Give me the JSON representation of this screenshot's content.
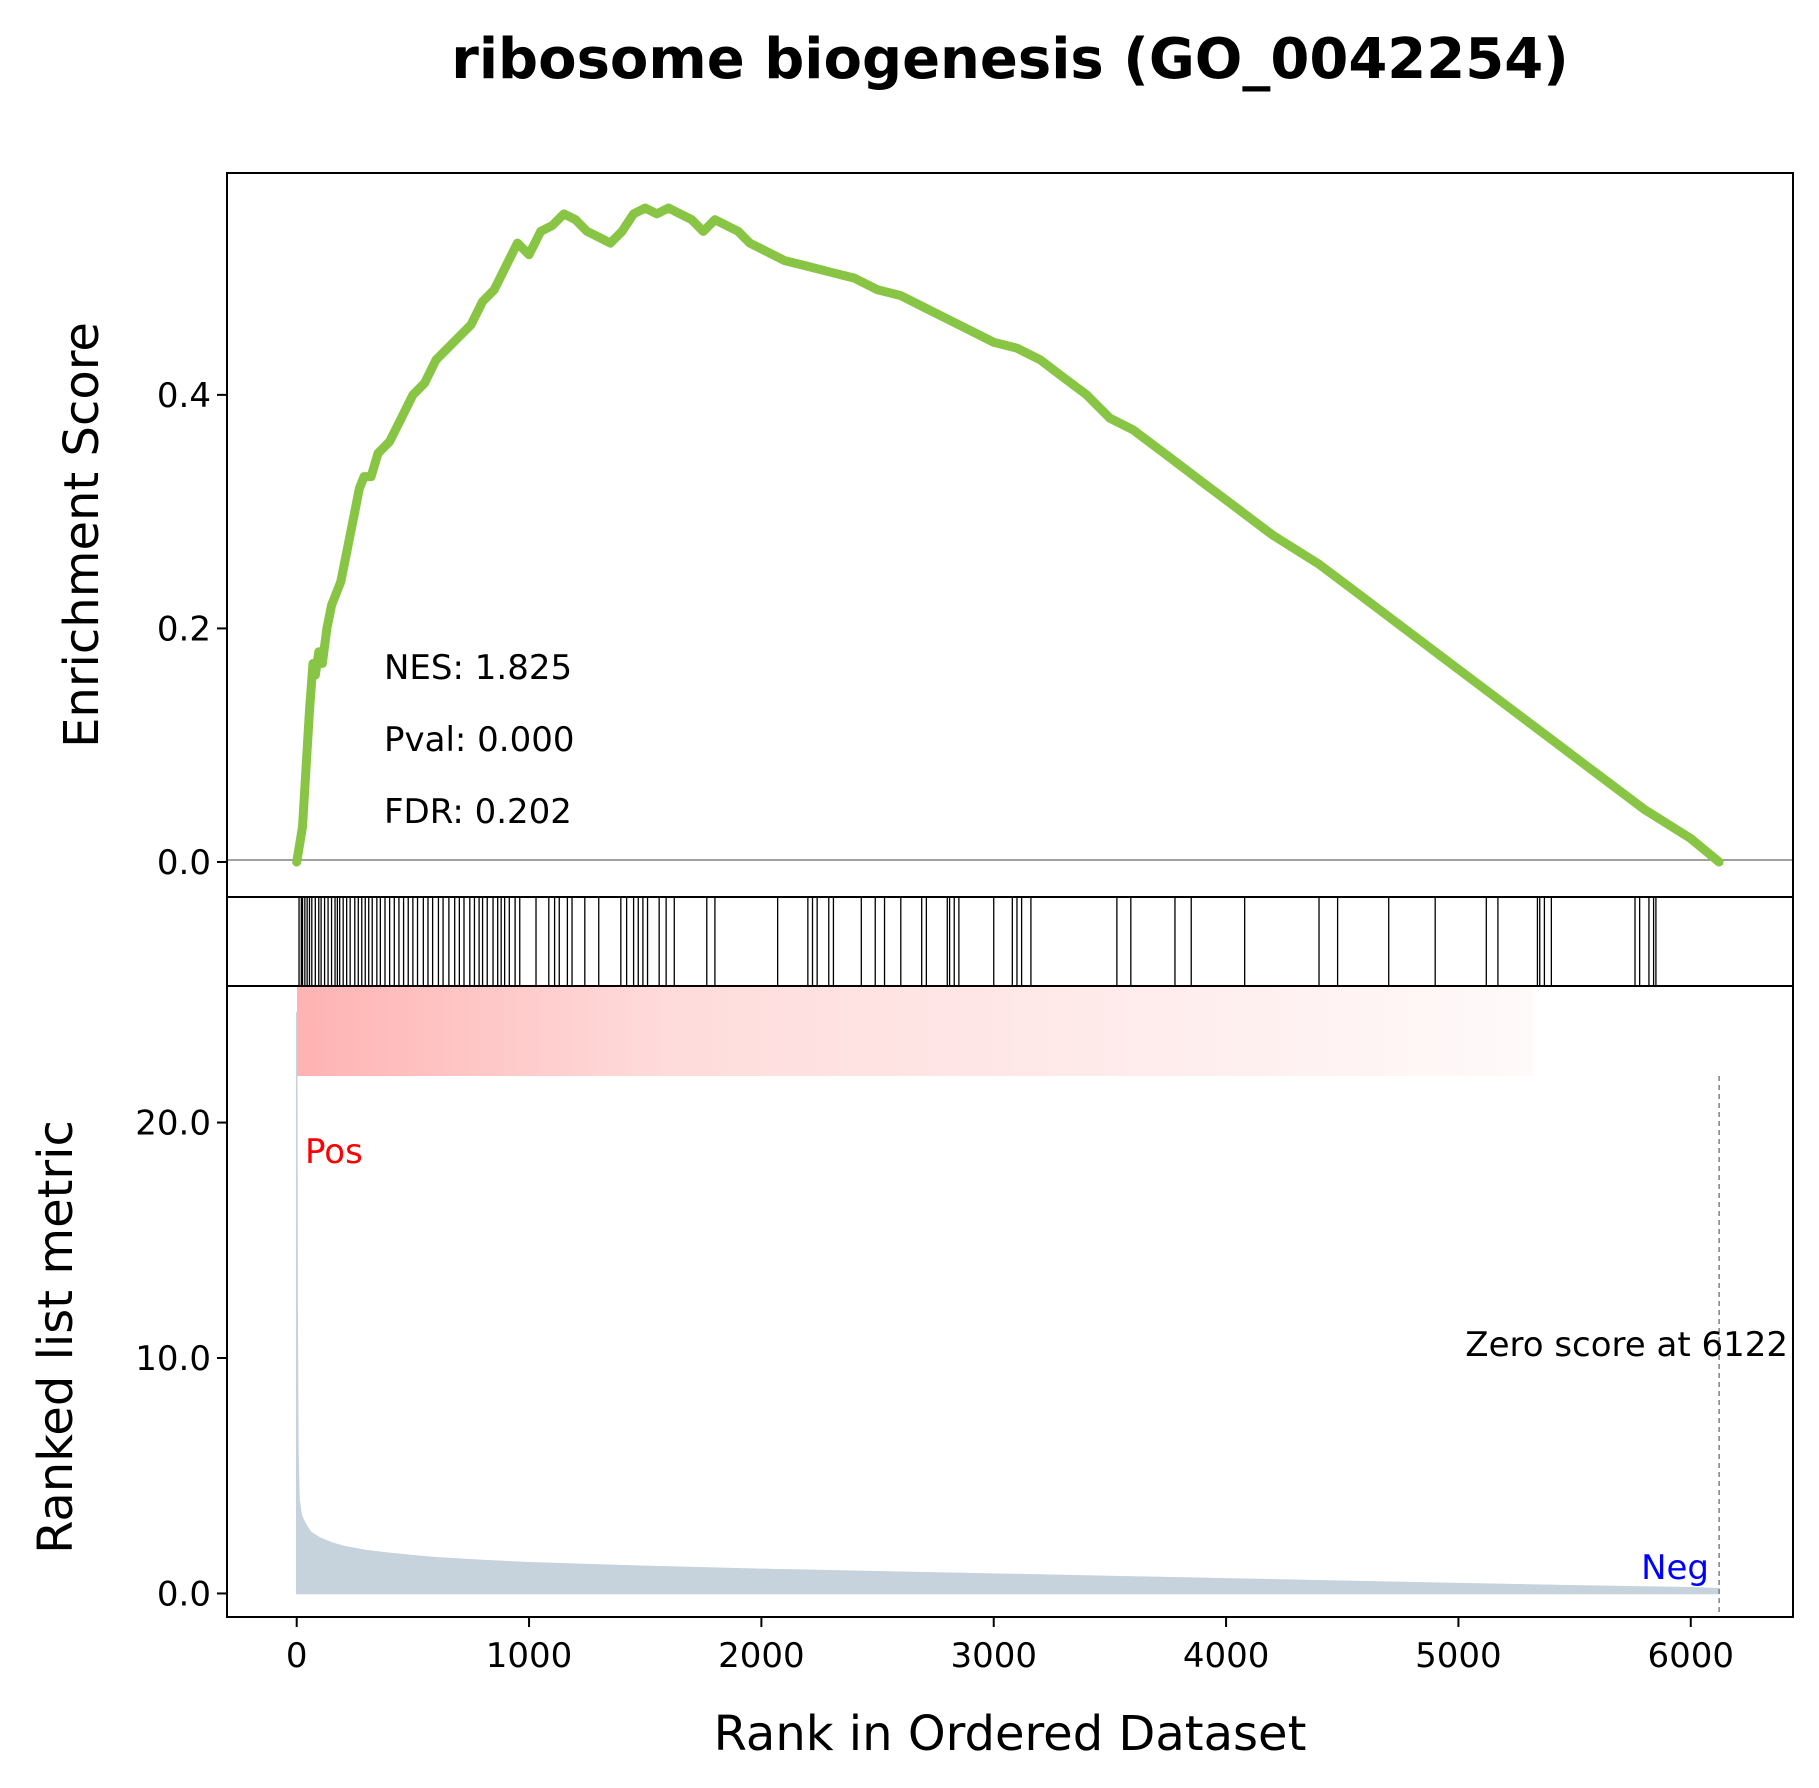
{
  "chart_data": {
    "type": "line",
    "title": "ribosome biogenesis (GO_0042254)",
    "xlabel": "Rank in Ordered Dataset",
    "xlim": [
      -300,
      6440
    ],
    "x_ticks": [
      0,
      1000,
      2000,
      3000,
      4000,
      5000,
      6000
    ],
    "x_tick_labels": [
      "0",
      "1000",
      "2000",
      "3000",
      "4000",
      "5000",
      "6000"
    ],
    "colors": {
      "es_line": "#88c544",
      "metric_fill": "#c6d2dc",
      "pos": "#ff0000",
      "neg": "#0000ff",
      "gradient": "#ff9999"
    },
    "panels": {
      "enrichment": {
        "ylabel": "Enrichment Score",
        "ylim": [
          -0.03,
          0.59
        ],
        "y_ticks": [
          0.0,
          0.2,
          0.4
        ],
        "y_tick_labels": [
          "0.0",
          "0.2",
          "0.4"
        ],
        "series": [
          {
            "x": [
              0,
              25,
              40,
              55,
              70,
              80,
              95,
              110,
              130,
              150,
              170,
              190,
              220,
              250,
              270,
              290,
              320,
              350,
              400,
              450,
              500,
              550,
              600,
              650,
              700,
              750,
              800,
              850,
              900,
              950,
              1000,
              1050,
              1100,
              1150,
              1200,
              1250,
              1300,
              1350,
              1400,
              1450,
              1500,
              1550,
              1600,
              1650,
              1700,
              1750,
              1800,
              1850,
              1900,
              1950,
              2000,
              2100,
              2200,
              2300,
              2400,
              2500,
              2600,
              2700,
              2800,
              2900,
              3000,
              3100,
              3200,
              3300,
              3400,
              3500,
              3600,
              3700,
              3800,
              3900,
              4000,
              4200,
              4400,
              4600,
              4800,
              5000,
              5200,
              5400,
              5600,
              5800,
              6000,
              6122
            ],
            "values": [
              0.0,
              0.03,
              0.08,
              0.13,
              0.17,
              0.16,
              0.18,
              0.17,
              0.2,
              0.22,
              0.23,
              0.24,
              0.27,
              0.3,
              0.32,
              0.33,
              0.33,
              0.35,
              0.36,
              0.38,
              0.4,
              0.41,
              0.43,
              0.44,
              0.45,
              0.46,
              0.48,
              0.49,
              0.51,
              0.53,
              0.52,
              0.54,
              0.545,
              0.555,
              0.55,
              0.54,
              0.535,
              0.53,
              0.54,
              0.555,
              0.56,
              0.555,
              0.56,
              0.555,
              0.55,
              0.54,
              0.55,
              0.545,
              0.54,
              0.53,
              0.525,
              0.515,
              0.51,
              0.505,
              0.5,
              0.49,
              0.485,
              0.475,
              0.465,
              0.455,
              0.445,
              0.44,
              0.43,
              0.415,
              0.4,
              0.38,
              0.37,
              0.355,
              0.34,
              0.325,
              0.31,
              0.28,
              0.255,
              0.225,
              0.195,
              0.165,
              0.135,
              0.105,
              0.075,
              0.045,
              0.02,
              0.0
            ]
          }
        ],
        "annotations": [
          "NES: 1.825",
          "Pval: 0.000",
          "FDR: 0.202"
        ]
      },
      "hits": {
        "positions": [
          10,
          20,
          25,
          35,
          45,
          55,
          65,
          80,
          95,
          105,
          120,
          135,
          150,
          165,
          175,
          185,
          200,
          215,
          230,
          250,
          265,
          280,
          295,
          310,
          325,
          345,
          360,
          380,
          400,
          420,
          440,
          460,
          480,
          500,
          520,
          545,
          565,
          585,
          610,
          630,
          655,
          680,
          700,
          720,
          745,
          765,
          785,
          800,
          820,
          845,
          865,
          880,
          895,
          915,
          940,
          960,
          1030,
          1085,
          1110,
          1130,
          1165,
          1185,
          1240,
          1300,
          1395,
          1420,
          1450,
          1470,
          1490,
          1510,
          1560,
          1590,
          1625,
          1765,
          1800,
          2070,
          2200,
          2220,
          2240,
          2290,
          2310,
          2430,
          2490,
          2530,
          2600,
          2690,
          2710,
          2800,
          2810,
          2830,
          2850,
          3000,
          3080,
          3100,
          3120,
          3160,
          3530,
          3590,
          3780,
          3850,
          4080,
          4400,
          4480,
          4700,
          4900,
          5120,
          5170,
          5340,
          5350,
          5370,
          5400,
          5760,
          5780,
          5820,
          5840,
          5850
        ]
      },
      "metric": {
        "ylabel": "Ranked list metric",
        "ylim": [
          -1.0,
          25.8
        ],
        "y_ticks": [
          0.0,
          10.0,
          20.0
        ],
        "y_tick_labels": [
          "0.0",
          "10.0",
          "20.0"
        ],
        "x": [
          0,
          1,
          2,
          5,
          10,
          20,
          40,
          60,
          100,
          150,
          200,
          300,
          400,
          500,
          600,
          800,
          1000,
          1500,
          2000,
          2500,
          3000,
          3500,
          4000,
          4500,
          5000,
          5500,
          6000,
          6122
        ],
        "values": [
          24.7,
          20.0,
          12.0,
          6.0,
          4.0,
          3.3,
          2.9,
          2.6,
          2.35,
          2.15,
          2.0,
          1.82,
          1.7,
          1.6,
          1.52,
          1.4,
          1.3,
          1.15,
          1.02,
          0.92,
          0.82,
          0.72,
          0.62,
          0.52,
          0.42,
          0.32,
          0.24,
          0.2
        ],
        "pos_label": "Pos",
        "neg_label": "Neg",
        "zero_score_label": "Zero score at 6122",
        "zero_score_rank": 6122
      }
    }
  }
}
